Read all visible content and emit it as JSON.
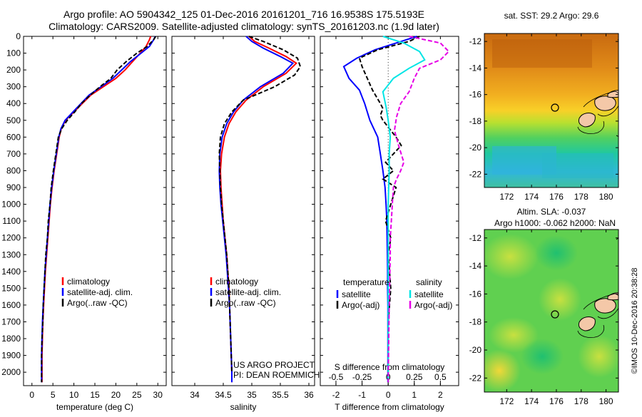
{
  "title_line1": "Argo profile: AO 5904342_125 01-Dec-2016 20161201_716 16.9538S 175.5193E",
  "title_line2": "Climatology: CARS2009. Satellite-adjusted climatology: synTS_20161203.nc (1.9d later)",
  "credit": "©IMOS 10-Dec-2016 20:38:28",
  "colors": {
    "climatology": "#ff0000",
    "satellite": "#0000ff",
    "argo": "#000000",
    "sal_satellite": "#00e5e5",
    "sal_argo": "#e600e6"
  },
  "chart_data": [
    {
      "type": "line",
      "xlabel": "temperature (deg C)",
      "xlim": [
        -2,
        32
      ],
      "ylim": [
        0,
        2080
      ],
      "xticks": [
        "0",
        "5",
        "10",
        "15",
        "20",
        "25",
        "30"
      ],
      "yticks": [
        "0",
        "100",
        "200",
        "300",
        "400",
        "500",
        "600",
        "700",
        "800",
        "900",
        "1000",
        "1100",
        "1200",
        "1300",
        "1400",
        "1500",
        "1600",
        "1700",
        "1800",
        "1900",
        "2000"
      ],
      "legend": [
        "climatology",
        "satellite-adj. clim.",
        "Argo(..raw -QC)"
      ],
      "series": [
        {
          "name": "climatology",
          "color": "#ff0000",
          "x": [
            28.3,
            28.0,
            27.2,
            25.8,
            24.0,
            22.2,
            20.0,
            17.0,
            14.0,
            12.0,
            10.0,
            8.0,
            7.0,
            6.5,
            5.9,
            5.3,
            4.8,
            4.4,
            4.1,
            3.8,
            3.5,
            3.2,
            3.0,
            2.8,
            2.6,
            2.5,
            2.4,
            2.4
          ],
          "y": [
            0,
            20,
            60,
            100,
            150,
            200,
            250,
            300,
            350,
            400,
            450,
            500,
            550,
            600,
            700,
            800,
            900,
            1000,
            1100,
            1200,
            1300,
            1400,
            1500,
            1600,
            1700,
            1800,
            1900,
            2060
          ]
        },
        {
          "name": "satellite-adj. clim.",
          "color": "#0000ff",
          "x": [
            29.4,
            29.0,
            28.0,
            26.0,
            23.5,
            21.4,
            19.3,
            16.5,
            13.6,
            11.7,
            9.8,
            7.9,
            6.9,
            6.4,
            5.8,
            5.2,
            4.7,
            4.3,
            4.0,
            3.7,
            3.4,
            3.1,
            2.9,
            2.7,
            2.5,
            2.4,
            2.3,
            2.3
          ],
          "y": [
            0,
            20,
            60,
            100,
            150,
            200,
            250,
            300,
            350,
            400,
            450,
            500,
            550,
            600,
            700,
            800,
            900,
            1000,
            1100,
            1200,
            1300,
            1400,
            1500,
            1600,
            1700,
            1800,
            1900,
            2060
          ]
        },
        {
          "name": "Argo(..raw -QC)",
          "color": "#000000",
          "x": [
            29.5,
            29.0,
            27.5,
            25.0,
            22.5,
            20.3,
            18.8,
            16.2,
            13.9,
            11.8,
            10.2,
            8.4,
            7.1,
            6.3,
            5.7,
            5.1,
            4.6,
            4.3,
            3.9,
            3.7,
            3.3,
            3.1,
            2.9,
            2.7,
            2.6,
            2.4,
            2.3,
            2.3
          ],
          "y": [
            0,
            20,
            60,
            100,
            150,
            200,
            250,
            300,
            350,
            400,
            450,
            500,
            550,
            600,
            700,
            800,
            900,
            1000,
            1100,
            1200,
            1300,
            1400,
            1500,
            1600,
            1700,
            1800,
            1900,
            2060
          ]
        }
      ]
    },
    {
      "type": "line",
      "xlabel": "salinity",
      "xlim": [
        33.6,
        36.1
      ],
      "ylim": [
        0,
        2080
      ],
      "xticks": [
        "34",
        "34.5",
        "35",
        "35.5",
        "36"
      ],
      "legend": [
        "climatology",
        "satellite-adj. clim.",
        "Argo(..raw -QC)"
      ],
      "annotations": [
        "US ARGO PROJECT",
        "PI: DEAN ROEMMICH"
      ],
      "series": [
        {
          "name": "climatology",
          "color": "#ff0000",
          "x": [
            34.95,
            35.05,
            35.3,
            35.6,
            35.78,
            35.6,
            35.2,
            34.9,
            34.72,
            34.6,
            34.52,
            34.47,
            34.45,
            34.46,
            34.48,
            34.5,
            34.53,
            34.56,
            34.58,
            34.6,
            34.61,
            34.62,
            34.63,
            34.64,
            34.65,
            34.65
          ],
          "y": [
            0,
            30,
            70,
            120,
            160,
            220,
            300,
            380,
            450,
            520,
            600,
            700,
            800,
            900,
            1000,
            1100,
            1200,
            1300,
            1400,
            1500,
            1600,
            1700,
            1800,
            1900,
            2000,
            2060
          ]
        },
        {
          "name": "satellite-adj. clim.",
          "color": "#0000ff",
          "x": [
            34.9,
            35.0,
            35.2,
            35.5,
            35.72,
            35.55,
            35.15,
            34.85,
            34.68,
            34.56,
            34.48,
            34.44,
            34.43,
            34.44,
            34.46,
            34.49,
            34.52,
            34.55,
            34.57,
            34.59,
            34.61,
            34.62,
            34.63,
            34.64,
            34.65,
            34.65
          ],
          "y": [
            0,
            30,
            70,
            120,
            160,
            220,
            300,
            380,
            450,
            520,
            600,
            700,
            800,
            900,
            1000,
            1100,
            1200,
            1300,
            1400,
            1500,
            1600,
            1700,
            1800,
            1900,
            2000,
            2060
          ]
        },
        {
          "name": "Argo(..raw -QC)",
          "color": "#000000",
          "x": [
            34.95,
            35.2,
            35.55,
            35.8,
            35.85,
            35.75,
            35.4,
            34.85,
            34.65,
            34.52,
            34.45,
            34.43,
            34.44,
            34.45,
            34.47,
            34.5,
            34.53,
            34.56,
            34.58,
            34.6,
            34.61,
            34.62,
            34.63,
            34.64,
            34.65
          ],
          "y": [
            0,
            30,
            80,
            130,
            180,
            230,
            300,
            380,
            450,
            520,
            600,
            700,
            800,
            900,
            1000,
            1100,
            1200,
            1300,
            1400,
            1500,
            1600,
            1700,
            1800,
            1900,
            2000
          ]
        }
      ]
    },
    {
      "type": "line",
      "xlabel": "T difference from climatology",
      "x2label": "S difference from climatology",
      "xlim": [
        -2.6,
        2.7
      ],
      "x2lim": [
        -0.65,
        0.675
      ],
      "ylim": [
        0,
        2080
      ],
      "xticks": [
        "-2",
        "-1",
        "0",
        "1",
        "2"
      ],
      "x2ticks": [
        "-0.5",
        "-0.25",
        "0",
        "0.25",
        "0.5"
      ],
      "legend_headers": [
        "temperature",
        "salinity"
      ],
      "legend": [
        "satellite",
        "Argo(-adj)",
        "satellite",
        "Argo(-adj)"
      ],
      "series": [
        {
          "name": "satellite",
          "color": "#0000ff",
          "axis": "T",
          "x": [
            1.1,
            0.5,
            -0.5,
            -1.2,
            -1.7,
            -1.5,
            -1.1,
            -0.9,
            -0.7,
            -0.4,
            -0.3,
            -0.2,
            -0.12,
            -0.08,
            -0.05,
            -0.04,
            -0.03,
            -0.02,
            -0.02,
            -0.01,
            -0.01,
            -0.01,
            -0.01,
            -0.01
          ],
          "y": [
            0,
            30,
            80,
            130,
            180,
            250,
            320,
            400,
            500,
            600,
            700,
            800,
            900,
            1000,
            1100,
            1200,
            1300,
            1400,
            1500,
            1600,
            1700,
            1800,
            1900,
            2060
          ]
        },
        {
          "name": "Argo(-adj)",
          "color": "#000000",
          "axis": "T",
          "x": [
            1.2,
            0.8,
            -0.4,
            -1.1,
            -1.0,
            -0.8,
            -0.6,
            -0.3,
            -0.2,
            -0.3,
            -0.2,
            0.1,
            0.3,
            0.5,
            0.2,
            -0.1,
            0.2,
            -0.2,
            0.3,
            0.1,
            -0.1,
            0.1,
            0.0,
            0.1,
            0.0,
            0.0,
            0.0
          ],
          "y": [
            0,
            30,
            80,
            130,
            180,
            250,
            320,
            400,
            430,
            470,
            500,
            560,
            600,
            650,
            700,
            750,
            800,
            850,
            900,
            1000,
            1100,
            1200,
            1300,
            1500,
            1700,
            1900,
            2060
          ]
        },
        {
          "name": "satellite",
          "color": "#00e5e5",
          "axis": "S",
          "x": [
            -0.05,
            0.15,
            0.3,
            0.35,
            0.2,
            0.05,
            -0.05,
            -0.02,
            0.0,
            0.02,
            0.01,
            0.01,
            0.0,
            0.0,
            0.0,
            0.0
          ],
          "y": [
            0,
            40,
            90,
            140,
            190,
            250,
            330,
            420,
            500,
            600,
            700,
            800,
            1000,
            1300,
            1700,
            2060
          ]
        },
        {
          "name": "Argo(-adj)",
          "color": "#e600e6",
          "axis": "S",
          "x": [
            0.2,
            0.5,
            0.58,
            0.5,
            0.3,
            0.25,
            0.2,
            0.12,
            0.08,
            0.06,
            0.1,
            0.15,
            0.12,
            0.08,
            0.05,
            0.04,
            0.03,
            0.02,
            0.02,
            0.01,
            0.0
          ],
          "y": [
            0,
            40,
            90,
            140,
            190,
            250,
            330,
            400,
            480,
            560,
            650,
            750,
            800,
            850,
            900,
            1000,
            1100,
            1200,
            1300,
            1600,
            2060
          ]
        }
      ]
    }
  ],
  "map_top": {
    "title": "sat. SST: 29.2 Argo: 29.6",
    "xticks": [
      "172",
      "174",
      "176",
      "178",
      "180"
    ],
    "yticks": [
      "-12",
      "-14",
      "-16",
      "-18",
      "-20",
      "-22"
    ]
  },
  "map_bottom": {
    "title_line1": "Altim. SLA: -0.037",
    "title_line2": "Argo h1000: -0.062 h2000: NaN",
    "xticks": [
      "172",
      "174",
      "176",
      "178",
      "180"
    ],
    "yticks": [
      "-12",
      "-14",
      "-16",
      "-18",
      "-20",
      "-22"
    ]
  }
}
